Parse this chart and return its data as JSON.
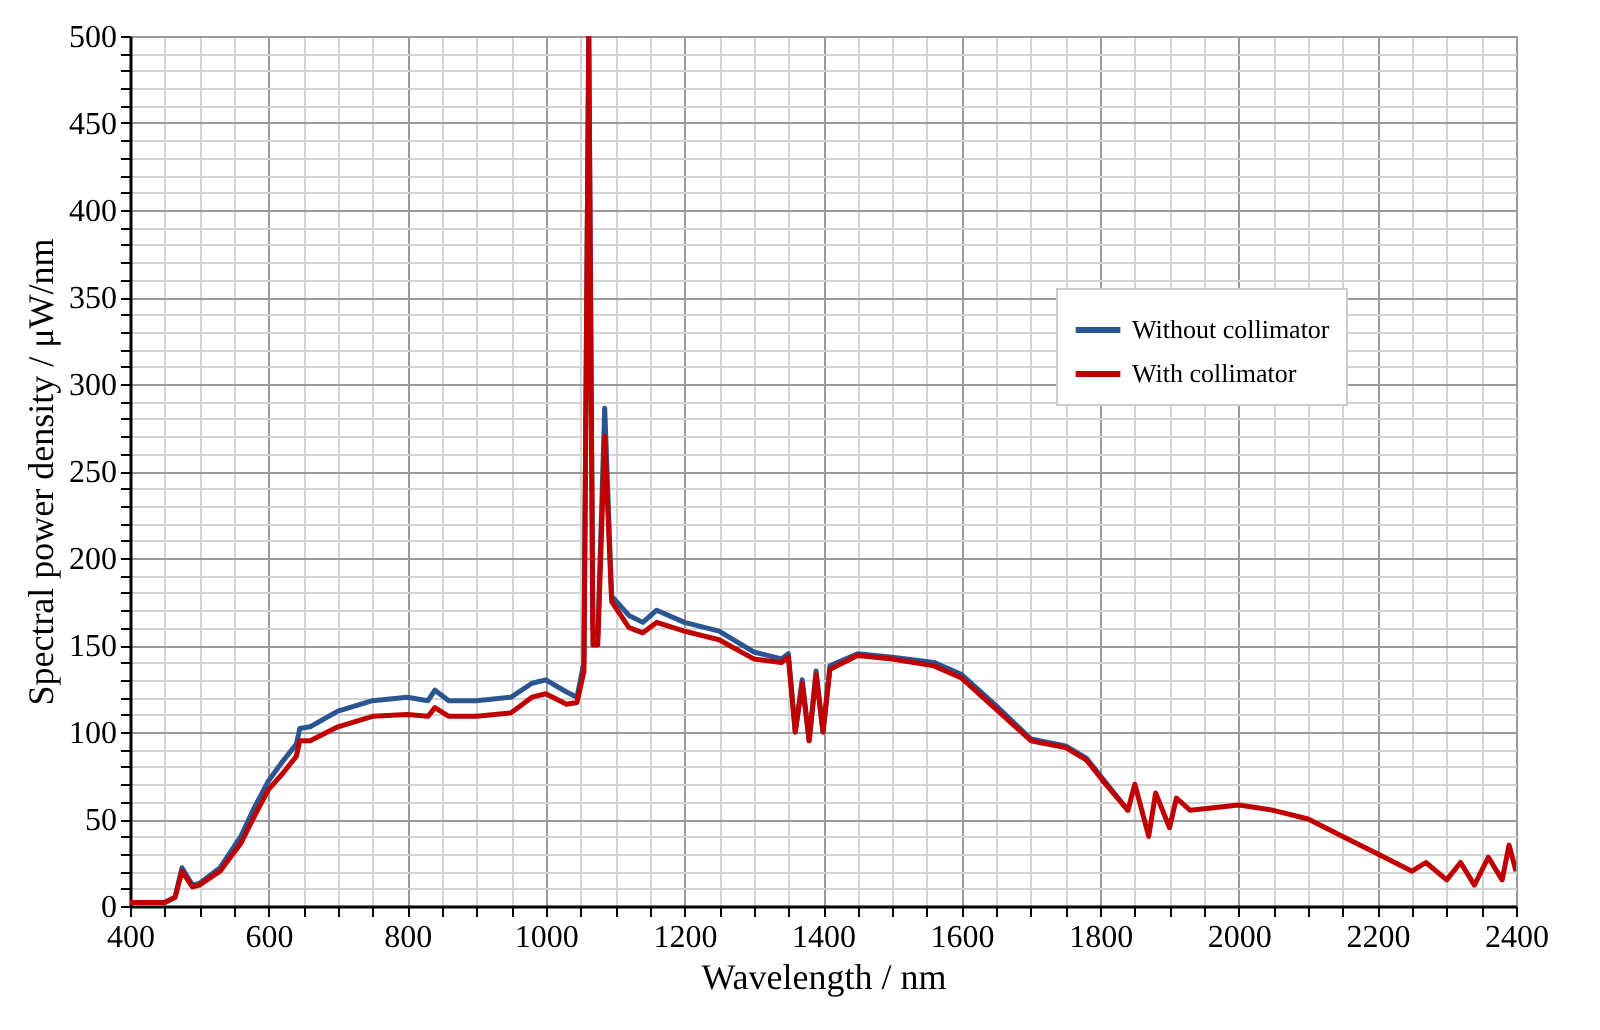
{
  "chart_data": {
    "type": "line",
    "xlabel": "Wavelength / nm",
    "ylabel": "Spectral power density / μW/nm",
    "x": [
      400,
      450,
      465,
      475,
      490,
      500,
      530,
      560,
      580,
      600,
      620,
      640,
      645,
      660,
      700,
      750,
      800,
      830,
      840,
      860,
      900,
      950,
      980,
      1000,
      1030,
      1045,
      1055,
      1062,
      1068,
      1075,
      1085,
      1095,
      1120,
      1140,
      1160,
      1200,
      1250,
      1300,
      1340,
      1350,
      1360,
      1370,
      1380,
      1390,
      1400,
      1410,
      1450,
      1500,
      1560,
      1600,
      1650,
      1700,
      1750,
      1780,
      1810,
      1840,
      1850,
      1870,
      1880,
      1900,
      1910,
      1930,
      2000,
      2050,
      2100,
      2150,
      2200,
      2250,
      2270,
      2300,
      2320,
      2340,
      2360,
      2380,
      2390,
      2400
    ],
    "series": [
      {
        "name": "Without collimator",
        "color": "#2a5591",
        "values": [
          2,
          2,
          5,
          22,
          12,
          13,
          22,
          40,
          57,
          72,
          83,
          93,
          102,
          103,
          112,
          118,
          120,
          118,
          124,
          118,
          118,
          120,
          128,
          130,
          123,
          120,
          140,
          500,
          160,
          155,
          286,
          178,
          167,
          163,
          170,
          163,
          158,
          146,
          142,
          145,
          100,
          130,
          95,
          135,
          100,
          138,
          145,
          143,
          140,
          133,
          115,
          96,
          92,
          85,
          70,
          55,
          null,
          null,
          null,
          null,
          null,
          null,
          null,
          null,
          null,
          null,
          null,
          null,
          null,
          null,
          null,
          null,
          null,
          null,
          null,
          null
        ]
      },
      {
        "name": "With collimator",
        "color": "#c00000",
        "values": [
          2,
          2,
          5,
          20,
          11,
          12,
          20,
          36,
          52,
          67,
          76,
          86,
          95,
          95,
          103,
          109,
          110,
          109,
          114,
          109,
          109,
          111,
          120,
          122,
          116,
          117,
          135,
          500,
          150,
          150,
          270,
          175,
          160,
          157,
          163,
          158,
          153,
          142,
          140,
          143,
          100,
          128,
          95,
          133,
          100,
          136,
          144,
          142,
          138,
          131,
          113,
          95,
          91,
          84,
          69,
          55,
          70,
          40,
          65,
          45,
          62,
          55,
          58,
          55,
          50,
          40,
          30,
          20,
          25,
          15,
          25,
          12,
          28,
          15,
          35,
          20
        ]
      }
    ],
    "xlim": [
      400,
      2400
    ],
    "ylim": [
      0,
      500
    ],
    "xticks": [
      400,
      {
        "value": 450,
        "label": null
      },
      {
        "value": 500,
        "label": null
      },
      {
        "value": 550,
        "label": null
      },
      600,
      {
        "value": 650,
        "label": null
      },
      {
        "value": 700,
        "label": null
      },
      {
        "value": 750,
        "label": null
      },
      800,
      {
        "value": 850,
        "label": null
      },
      {
        "value": 900,
        "label": null
      },
      {
        "value": 950,
        "label": null
      },
      1000,
      {
        "value": 1050,
        "label": null
      },
      {
        "value": 1100,
        "label": null
      },
      {
        "value": 1150,
        "label": null
      },
      1200,
      {
        "value": 1250,
        "label": null
      },
      {
        "value": 1300,
        "label": null
      },
      {
        "value": 1350,
        "label": null
      },
      1400,
      {
        "value": 1450,
        "label": null
      },
      {
        "value": 1500,
        "label": null
      },
      {
        "value": 1550,
        "label": null
      },
      1600,
      {
        "value": 1650,
        "label": null
      },
      {
        "value": 1700,
        "label": null
      },
      {
        "value": 1750,
        "label": null
      },
      1800,
      {
        "value": 1850,
        "label": null
      },
      {
        "value": 1900,
        "label": null
      },
      {
        "value": 1950,
        "label": null
      },
      2000,
      {
        "value": 2050,
        "label": null
      },
      {
        "value": 2100,
        "label": null
      },
      {
        "value": 2150,
        "label": null
      },
      2200,
      {
        "value": 2250,
        "label": null
      },
      {
        "value": 2300,
        "label": null
      },
      {
        "value": 2350,
        "label": null
      },
      2400
    ],
    "yticks": [
      0,
      {
        "value": 10,
        "label": null
      },
      {
        "value": 20,
        "label": null
      },
      {
        "value": 30,
        "label": null
      },
      {
        "value": 40,
        "label": null
      },
      50,
      {
        "value": 60,
        "label": null
      },
      {
        "value": 70,
        "label": null
      },
      {
        "value": 80,
        "label": null
      },
      {
        "value": 90,
        "label": null
      },
      100,
      {
        "value": 110,
        "label": null
      },
      {
        "value": 120,
        "label": null
      },
      {
        "value": 130,
        "label": null
      },
      {
        "value": 140,
        "label": null
      },
      150,
      {
        "value": 160,
        "label": null
      },
      {
        "value": 170,
        "label": null
      },
      {
        "value": 180,
        "label": null
      },
      {
        "value": 190,
        "label": null
      },
      200,
      {
        "value": 210,
        "label": null
      },
      {
        "value": 220,
        "label": null
      },
      {
        "value": 230,
        "label": null
      },
      {
        "value": 240,
        "label": null
      },
      250,
      {
        "value": 260,
        "label": null
      },
      {
        "value": 270,
        "label": null
      },
      {
        "value": 280,
        "label": null
      },
      {
        "value": 290,
        "label": null
      },
      300,
      {
        "value": 310,
        "label": null
      },
      {
        "value": 320,
        "label": null
      },
      {
        "value": 330,
        "label": null
      },
      {
        "value": 340,
        "label": null
      },
      350,
      {
        "value": 360,
        "label": null
      },
      {
        "value": 370,
        "label": null
      },
      {
        "value": 380,
        "label": null
      },
      {
        "value": 390,
        "label": null
      },
      400,
      {
        "value": 410,
        "label": null
      },
      {
        "value": 420,
        "label": null
      },
      {
        "value": 430,
        "label": null
      },
      {
        "value": 440,
        "label": null
      },
      450,
      {
        "value": 460,
        "label": null
      },
      {
        "value": 470,
        "label": null
      },
      {
        "value": 480,
        "label": null
      },
      {
        "value": 490,
        "label": null
      },
      500
    ],
    "grid": true,
    "legend": "top right",
    "line_style": "solid",
    "marker": "none"
  }
}
